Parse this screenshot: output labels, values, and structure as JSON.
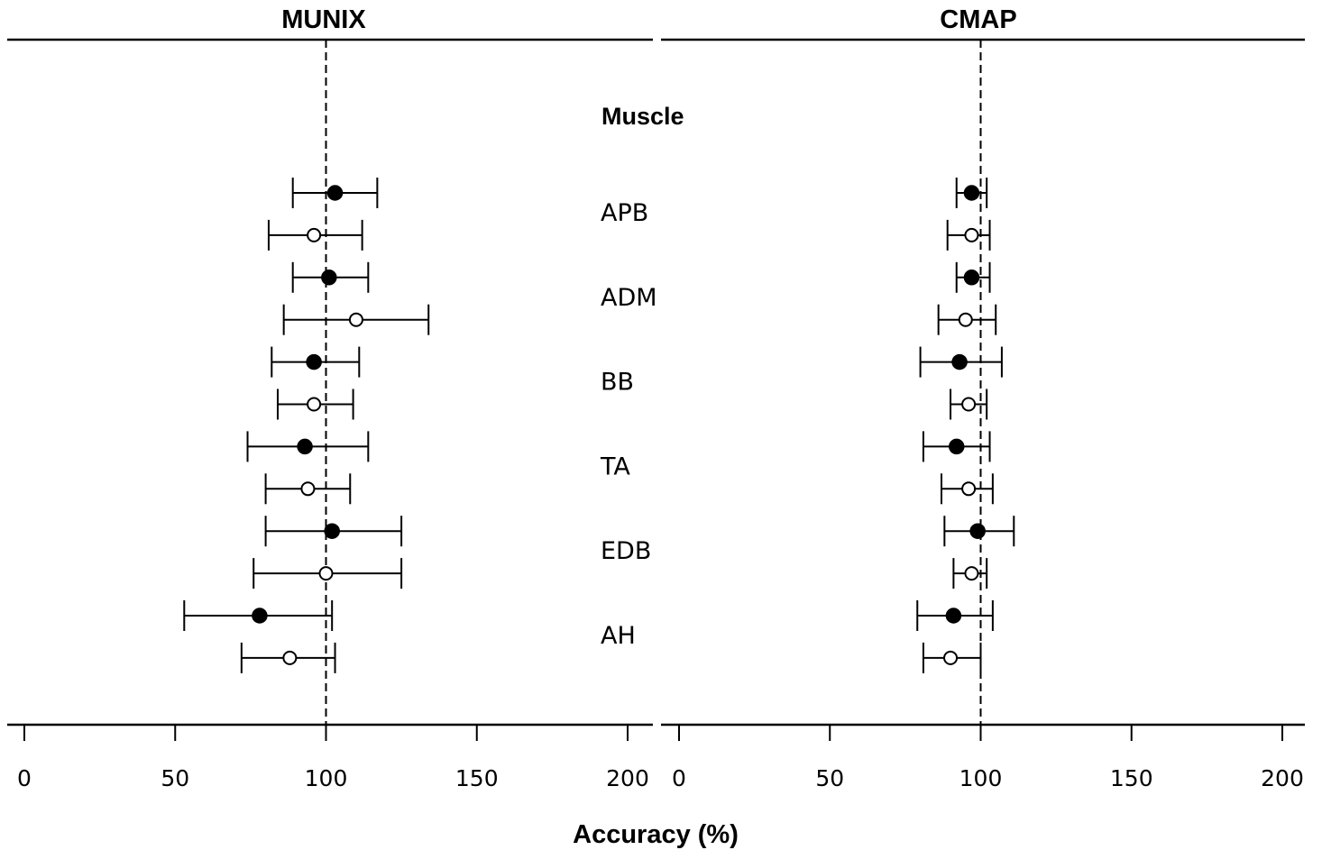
{
  "chart_data": {
    "type": "scatter",
    "subtype": "forest-plot",
    "xlabel": "Accuracy (%)",
    "row_header": "Muscle",
    "muscles": [
      "APB",
      "ADM",
      "BB",
      "TA",
      "EDB",
      "AH"
    ],
    "xlim": [
      0,
      200
    ],
    "xticks": [
      0,
      50,
      100,
      150,
      200
    ],
    "reference_line": 100,
    "marker_styles": [
      "filled",
      "open"
    ],
    "panels": [
      {
        "title": "MUNIX",
        "rows": [
          {
            "muscle": "APB",
            "marker": "filled",
            "value": 103,
            "lo": 89,
            "hi": 117
          },
          {
            "muscle": "APB",
            "marker": "open",
            "value": 96,
            "lo": 81,
            "hi": 112
          },
          {
            "muscle": "ADM",
            "marker": "filled",
            "value": 101,
            "lo": 89,
            "hi": 114
          },
          {
            "muscle": "ADM",
            "marker": "open",
            "value": 110,
            "lo": 86,
            "hi": 134
          },
          {
            "muscle": "BB",
            "marker": "filled",
            "value": 96,
            "lo": 82,
            "hi": 111
          },
          {
            "muscle": "BB",
            "marker": "open",
            "value": 96,
            "lo": 84,
            "hi": 109
          },
          {
            "muscle": "TA",
            "marker": "filled",
            "value": 93,
            "lo": 74,
            "hi": 114
          },
          {
            "muscle": "TA",
            "marker": "open",
            "value": 94,
            "lo": 80,
            "hi": 108
          },
          {
            "muscle": "EDB",
            "marker": "filled",
            "value": 102,
            "lo": 80,
            "hi": 125
          },
          {
            "muscle": "EDB",
            "marker": "open",
            "value": 100,
            "lo": 76,
            "hi": 125
          },
          {
            "muscle": "AH",
            "marker": "filled",
            "value": 78,
            "lo": 53,
            "hi": 102
          },
          {
            "muscle": "AH",
            "marker": "open",
            "value": 88,
            "lo": 72,
            "hi": 103
          }
        ]
      },
      {
        "title": "CMAP",
        "rows": [
          {
            "muscle": "APB",
            "marker": "filled",
            "value": 97,
            "lo": 92,
            "hi": 102
          },
          {
            "muscle": "APB",
            "marker": "open",
            "value": 97,
            "lo": 89,
            "hi": 103
          },
          {
            "muscle": "ADM",
            "marker": "filled",
            "value": 97,
            "lo": 92,
            "hi": 103
          },
          {
            "muscle": "ADM",
            "marker": "open",
            "value": 95,
            "lo": 86,
            "hi": 105
          },
          {
            "muscle": "BB",
            "marker": "filled",
            "value": 93,
            "lo": 80,
            "hi": 107
          },
          {
            "muscle": "BB",
            "marker": "open",
            "value": 96,
            "lo": 90,
            "hi": 102
          },
          {
            "muscle": "TA",
            "marker": "filled",
            "value": 92,
            "lo": 81,
            "hi": 103
          },
          {
            "muscle": "TA",
            "marker": "open",
            "value": 96,
            "lo": 87,
            "hi": 104
          },
          {
            "muscle": "EDB",
            "marker": "filled",
            "value": 99,
            "lo": 88,
            "hi": 111
          },
          {
            "muscle": "EDB",
            "marker": "open",
            "value": 97,
            "lo": 91,
            "hi": 102
          },
          {
            "muscle": "AH",
            "marker": "filled",
            "value": 91,
            "lo": 79,
            "hi": 104
          },
          {
            "muscle": "AH",
            "marker": "open",
            "value": 90,
            "lo": 81,
            "hi": 100
          }
        ]
      }
    ]
  }
}
